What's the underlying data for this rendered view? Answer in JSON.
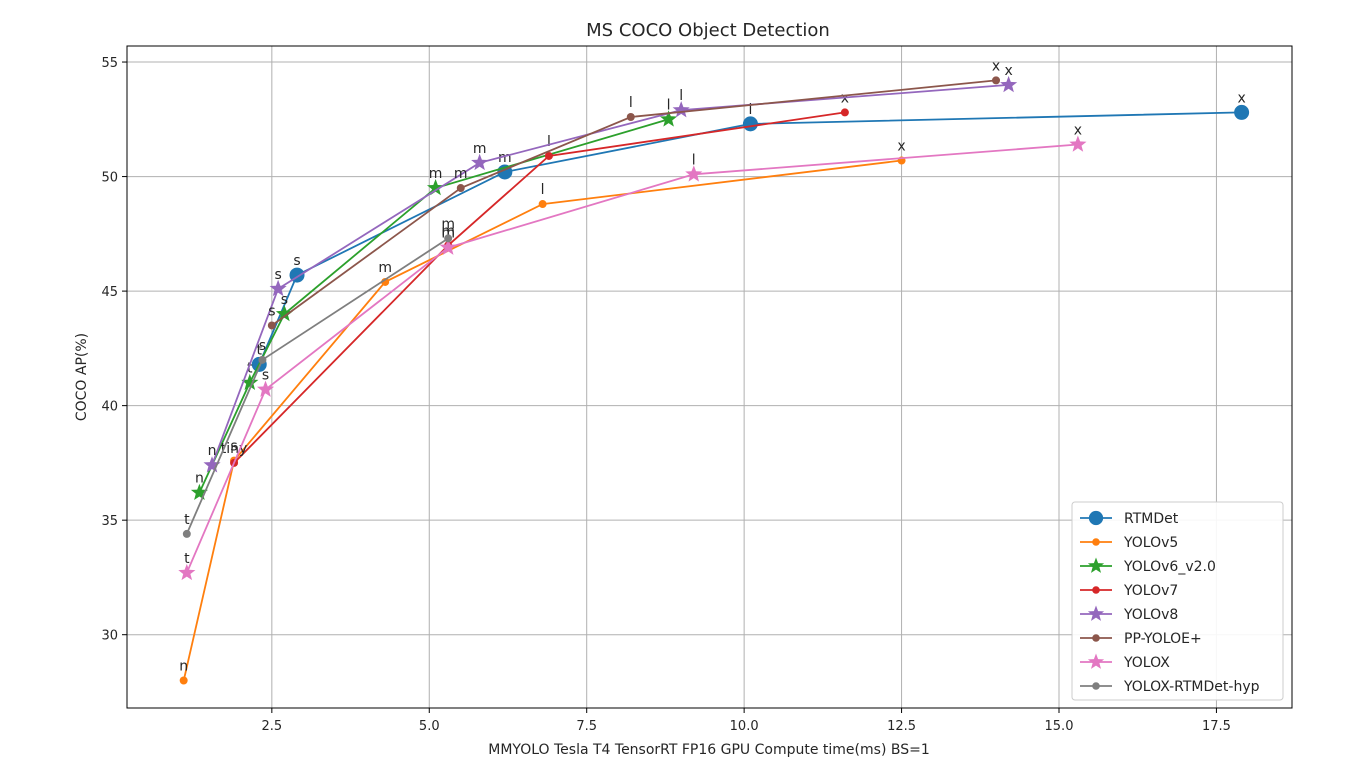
{
  "chart_data": {
    "type": "line",
    "title": "MS COCO Object Detection",
    "xlabel": "MMYOLO Tesla T4 TensorRT FP16 GPU Compute time(ms) BS=1",
    "ylabel": "COCO AP(%)",
    "xlim": [
      0.2,
      18.7
    ],
    "ylim": [
      26.8,
      55.7
    ],
    "xticks": [
      2.5,
      5.0,
      7.5,
      10.0,
      12.5,
      15.0,
      17.5
    ],
    "xtick_labels": [
      "2.5",
      "5.0",
      "7.5",
      "10.0",
      "12.5",
      "15.0",
      "17.5"
    ],
    "yticks": [
      30,
      35,
      40,
      45,
      50,
      55
    ],
    "ytick_labels": [
      "30",
      "35",
      "40",
      "45",
      "50",
      "55"
    ],
    "grid": true,
    "legend_position": "lower-right",
    "series": [
      {
        "name": "RTMDet",
        "color": "#1f77b4",
        "marker": "circle-large",
        "x": [
          2.3,
          2.9,
          6.2,
          10.1,
          17.9
        ],
        "y": [
          41.8,
          45.7,
          50.2,
          52.3,
          52.8
        ],
        "labels": [
          "t",
          "s",
          "m",
          "l",
          "x"
        ]
      },
      {
        "name": "YOLOv5",
        "color": "#ff7f0e",
        "marker": "circle",
        "x": [
          1.1,
          1.9,
          4.3,
          6.8,
          12.5
        ],
        "y": [
          28.0,
          37.6,
          45.4,
          48.8,
          50.7
        ],
        "labels": [
          "n",
          "s",
          "m",
          "l",
          "x"
        ]
      },
      {
        "name": "YOLOv6_v2.0",
        "color": "#2ca02c",
        "marker": "star",
        "x": [
          1.35,
          2.15,
          2.7,
          5.1,
          8.8
        ],
        "y": [
          36.2,
          41.0,
          44.0,
          49.5,
          52.5
        ],
        "labels": [
          "n",
          "t",
          "s",
          "m",
          "l"
        ]
      },
      {
        "name": "YOLOv7",
        "color": "#d62728",
        "marker": "circle",
        "x": [
          1.9,
          5.3,
          6.9,
          11.6
        ],
        "y": [
          37.5,
          47.0,
          50.9,
          52.8
        ],
        "labels": [
          "tiny",
          "m",
          "l",
          "x"
        ]
      },
      {
        "name": "YOLOv8",
        "color": "#9467bd",
        "marker": "star",
        "x": [
          1.55,
          2.6,
          5.8,
          9.0,
          14.2
        ],
        "y": [
          37.4,
          45.1,
          50.6,
          52.9,
          54.0
        ],
        "labels": [
          "n",
          "s",
          "m",
          "l",
          "x"
        ]
      },
      {
        "name": "PP-YOLOE+",
        "color": "#8c564b",
        "marker": "circle",
        "x": [
          2.5,
          5.5,
          8.2,
          14.0
        ],
        "y": [
          43.5,
          49.5,
          52.6,
          54.2
        ],
        "labels": [
          "s",
          "m",
          "l",
          "x"
        ]
      },
      {
        "name": "YOLOX",
        "color": "#e377c2",
        "marker": "star",
        "x": [
          1.15,
          2.4,
          5.3,
          9.2,
          15.3
        ],
        "y": [
          32.7,
          40.7,
          46.9,
          50.1,
          51.4
        ],
        "labels": [
          "t",
          "s",
          "m",
          "l",
          "x"
        ]
      },
      {
        "name": "YOLOX-RTMDet-hyp",
        "color": "#7f7f7f",
        "marker": "circle",
        "x": [
          1.15,
          2.35,
          5.3
        ],
        "y": [
          34.4,
          42.0,
          47.3
        ],
        "labels": [
          "t",
          "s",
          "m"
        ]
      }
    ]
  }
}
